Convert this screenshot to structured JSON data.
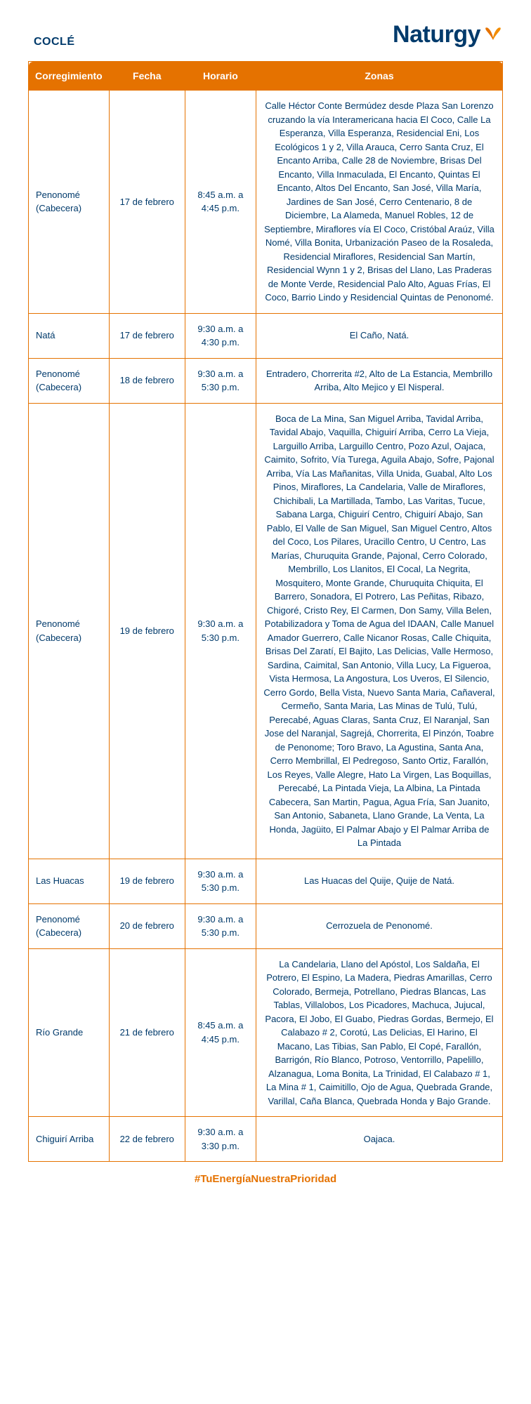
{
  "brand": {
    "name": "Naturgy"
  },
  "region": "COCLÉ",
  "colors": {
    "header_bg": "#e57200",
    "header_text": "#ffffff",
    "border": "#e57200",
    "body_text": "#003a6b",
    "hashtag": "#e57200"
  },
  "table": {
    "columns": [
      "Corregimiento",
      "Fecha",
      "Horario",
      "Zonas"
    ],
    "rows": [
      {
        "corregimiento": "Penonomé (Cabecera)",
        "fecha": "17 de febrero",
        "horario": "8:45 a.m. a 4:45 p.m.",
        "zonas": "Calle Héctor Conte Bermúdez desde Plaza San Lorenzo cruzando la vía Interamericana hacia El Coco, Calle La Esperanza, Villa Esperanza, Residencial Eni, Los Ecológicos 1 y 2, Villa Arauca, Cerro Santa Cruz, El Encanto Arriba, Calle 28 de Noviembre, Brisas Del Encanto, Villa Inmaculada, El Encanto, Quintas El Encanto, Altos Del Encanto, San José, Villa María, Jardines de San José, Cerro Centenario, 8 de Diciembre, La Alameda, Manuel Robles, 12 de Septiembre, Miraflores vía El Coco, Cristóbal Araúz, Villa Nomé, Villa Bonita, Urbanización Paseo de la Rosaleda, Residencial Miraflores, Residencial San Martín, Residencial Wynn 1 y 2, Brisas del Llano, Las Praderas de Monte Verde, Residencial Palo Alto, Aguas Frías, El Coco, Barrio Lindo y Residencial Quintas de Penonomé."
      },
      {
        "corregimiento": "Natá",
        "fecha": "17 de febrero",
        "horario": "9:30 a.m. a 4:30 p.m.",
        "zonas": "El Caño, Natá."
      },
      {
        "corregimiento": "Penonomé (Cabecera)",
        "fecha": "18 de febrero",
        "horario": "9:30 a.m. a 5:30 p.m.",
        "zonas": "Entradero, Chorrerita #2, Alto de La Estancia, Membrillo Arriba, Alto Mejico y El Nisperal."
      },
      {
        "corregimiento": "Penonomé (Cabecera)",
        "fecha": "19 de febrero",
        "horario": "9:30 a.m. a 5:30 p.m.",
        "zonas": "Boca de La Mina, San Miguel Arriba, Tavidal Arriba, Tavidal Abajo, Vaquilla, Chiguirí Arriba, Cerro La Vieja, Larguillo Arriba, Larguillo Centro, Pozo Azul, Oajaca, Caimito, Sofrito, Vía Turega, Aguila Abajo, Sofre, Pajonal Arriba, Vía Las Mañanitas, Villa Unida, Guabal, Alto Los Pinos, Miraflores, La Candelaria, Valle de Miraflores, Chichibali, La Martillada, Tambo, Las Varitas, Tucue, Sabana Larga, Chiguirí Centro, Chiguirí Abajo, San Pablo, El Valle de San Miguel, San Miguel Centro, Altos del Coco, Los Pilares, Uracillo Centro, U Centro, Las Marías, Churuquita Grande, Pajonal, Cerro Colorado, Membrillo, Los Llanitos, El Cocal, La Negrita, Mosquitero, Monte Grande, Churuquita Chiquita, El Barrero, Sonadora, El Potrero, Las Peñitas, Ribazo, Chigoré, Cristo Rey, El Carmen, Don Samy, Villa Belen, Potabilizadora y Toma de Agua del IDAAN, Calle Manuel Amador Guerrero, Calle Nicanor Rosas, Calle Chiquita, Brisas Del Zaratí, El Bajito, Las Delicias, Valle Hermoso, Sardina, Caimital, San Antonio, Villa Lucy, La Figueroa, Vista Hermosa, La Angostura, Los Uveros, El Silencio, Cerro Gordo, Bella Vista, Nuevo Santa Maria, Cañaveral, Cermeño, Santa Maria, Las Minas de Tulú, Tulú, Perecabé, Aguas Claras, Santa Cruz, El Naranjal, San Jose del Naranjal, Sagrejá, Chorrerita, El Pinzón, Toabre de Penonome; Toro Bravo, La Agustina, Santa Ana, Cerro Membrillal, El Pedregoso, Santo Ortiz, Farallón, Los Reyes, Valle Alegre, Hato La Virgen, Las Boquillas, Perecabé, La Pintada Vieja, La Albina, La Pintada Cabecera, San Martin, Pagua, Agua Fría, San Juanito, San Antonio, Sabaneta, Llano Grande, La Venta, La Honda, Jagüito, El Palmar Abajo y El Palmar Arriba de La Pintada"
      },
      {
        "corregimiento": "Las Huacas",
        "fecha": "19 de febrero",
        "horario": "9:30 a.m. a 5:30 p.m.",
        "zonas": "Las Huacas del Quije, Quije de Natá."
      },
      {
        "corregimiento": "Penonomé (Cabecera)",
        "fecha": "20 de febrero",
        "horario": "9:30 a.m. a 5:30 p.m.",
        "zonas": "Cerrozuela de Penonomé."
      },
      {
        "corregimiento": "Río Grande",
        "fecha": "21 de febrero",
        "horario": "8:45 a.m. a 4:45 p.m.",
        "zonas": "La Candelaria, Llano del Apóstol, Los Saldaña, El Potrero, El Espino, La Madera, Piedras Amarillas, Cerro Colorado, Bermeja, Potrellano, Piedras Blancas, Las Tablas, Villalobos, Los Picadores, Machuca, Jujucal, Pacora, El Jobo, El Guabo, Piedras Gordas, Bermejo, El Calabazo # 2, Corotú, Las Delicias, El Harino, El Macano, Las Tibias, San Pablo, El Copé, Farallón, Barrigón, Río Blanco, Potroso, Ventorrillo, Papelillo, Alzanagua, Loma Bonita, La Trinidad, El Calabazo # 1, La Mina # 1, Caimitillo, Ojo de Agua, Quebrada Grande, Varillal, Caña Blanca, Quebrada Honda y Bajo Grande."
      },
      {
        "corregimiento": "Chiguirí Arriba",
        "fecha": "22 de febrero",
        "horario": "9:30 a.m. a 3:30 p.m.",
        "zonas": "Oajaca."
      }
    ]
  },
  "hashtag": "#TuEnergíaNuestraPrioridad"
}
